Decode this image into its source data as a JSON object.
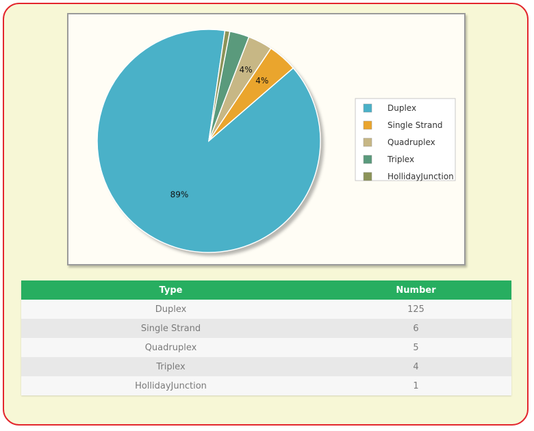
{
  "chart_data": {
    "type": "pie",
    "categories": [
      "Duplex",
      "Single Strand",
      "Quadruplex",
      "Triplex",
      "HollidayJunction"
    ],
    "values": [
      125,
      6,
      5,
      4,
      1
    ],
    "data_labels": [
      "89%",
      "4%",
      "4%",
      "",
      ""
    ],
    "colors": [
      "#4ab1c8",
      "#eaa52d",
      "#c7b785",
      "#5a9a7c",
      "#8c9459"
    ],
    "legend_position": "right",
    "title": ""
  },
  "table": {
    "headers": [
      "Type",
      "Number"
    ],
    "rows": [
      [
        "Duplex",
        "125"
      ],
      [
        "Single Strand",
        "6"
      ],
      [
        "Quadruplex",
        "5"
      ],
      [
        "Triplex",
        "4"
      ],
      [
        "HollidayJunction",
        "1"
      ]
    ]
  }
}
